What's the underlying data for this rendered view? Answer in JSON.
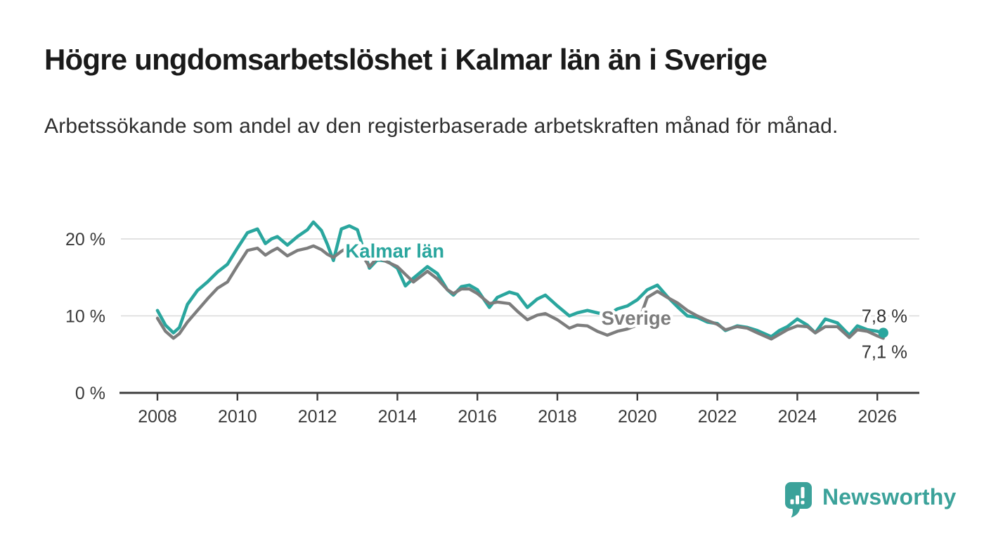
{
  "header": {
    "title": "Högre ungdomsarbetslöshet i Kalmar län än i Sverige",
    "subtitle": "Arbetssökande som andel av den registerbaserade arbetskraften månad för månad."
  },
  "chart_data": {
    "type": "line",
    "title": "",
    "xlabel": "",
    "ylabel": "",
    "x_unit": "decimal year (monthly series, Jan 2008 - Feb 2026)",
    "grid": "horizontal gridlines at 10 % and 20 %",
    "legend": "inline labels on lines",
    "xlim": [
      2007.05,
      2027.05
    ],
    "ylim": [
      0,
      23
    ],
    "yticks": [
      {
        "value": 0,
        "label": "0 %"
      },
      {
        "value": 10,
        "label": "10 %"
      },
      {
        "value": 20,
        "label": "20 %"
      }
    ],
    "xticks": [
      2008,
      2010,
      2012,
      2014,
      2016,
      2018,
      2020,
      2022,
      2024,
      2026
    ],
    "x": [
      2008.0,
      2008.2,
      2008.4,
      2008.55,
      2008.75,
      2009.0,
      2009.25,
      2009.5,
      2009.75,
      2010.0,
      2010.25,
      2010.5,
      2010.7,
      2010.85,
      2011.0,
      2011.25,
      2011.5,
      2011.75,
      2011.9,
      2012.1,
      2012.25,
      2012.4,
      2012.6,
      2012.8,
      2013.0,
      2013.3,
      2013.5,
      2013.75,
      2014.0,
      2014.2,
      2014.4,
      2014.75,
      2015.0,
      2015.25,
      2015.4,
      2015.6,
      2015.8,
      2016.0,
      2016.3,
      2016.5,
      2016.8,
      2017.0,
      2017.25,
      2017.5,
      2017.7,
      2018.0,
      2018.3,
      2018.5,
      2018.75,
      2019.0,
      2019.25,
      2019.5,
      2019.75,
      2020.0,
      2020.25,
      2020.5,
      2020.75,
      2021.0,
      2021.25,
      2021.5,
      2021.75,
      2022.0,
      2022.2,
      2022.5,
      2022.75,
      2023.0,
      2023.35,
      2023.55,
      2023.75,
      2024.0,
      2024.25,
      2024.45,
      2024.7,
      2025.0,
      2025.3,
      2025.5,
      2025.75,
      2026.0,
      2026.15
    ],
    "series": [
      {
        "name": "Kalmar län",
        "color": "#2aa69e",
        "end_label": "7,8 %",
        "end_value": 7.8,
        "end_dot": true,
        "values": [
          10.7,
          8.8,
          7.8,
          8.5,
          11.5,
          13.3,
          14.4,
          15.7,
          16.7,
          18.8,
          20.8,
          21.3,
          19.4,
          20.0,
          20.3,
          19.2,
          20.3,
          21.2,
          22.2,
          21.1,
          19.3,
          17.2,
          21.3,
          21.7,
          21.2,
          16.2,
          17.3,
          17.1,
          16.2,
          13.9,
          14.9,
          16.4,
          15.5,
          13.4,
          12.7,
          13.8,
          14.0,
          13.4,
          11.1,
          12.4,
          13.1,
          12.8,
          11.1,
          12.2,
          12.7,
          11.3,
          10.0,
          10.4,
          10.7,
          10.4,
          10.1,
          10.9,
          11.3,
          12.1,
          13.4,
          14.0,
          12.5,
          11.2,
          10.0,
          9.8,
          9.2,
          9.0,
          8.1,
          8.7,
          8.5,
          8.1,
          7.3,
          8.1,
          8.6,
          9.6,
          8.8,
          7.8,
          9.6,
          9.1,
          7.5,
          8.7,
          8.2,
          8.0,
          7.8
        ]
      },
      {
        "name": "Sverige",
        "color": "#7d7d7d",
        "end_label": "7,1 %",
        "end_value": 7.1,
        "end_dot": false,
        "values": [
          9.7,
          8.0,
          7.1,
          7.7,
          9.2,
          10.7,
          12.2,
          13.6,
          14.4,
          16.5,
          18.5,
          18.8,
          17.9,
          18.4,
          18.8,
          17.8,
          18.5,
          18.8,
          19.1,
          18.6,
          18.0,
          17.6,
          18.4,
          19.0,
          18.9,
          16.4,
          17.6,
          17.0,
          16.4,
          15.4,
          14.4,
          15.8,
          14.8,
          13.4,
          12.9,
          13.5,
          13.5,
          12.9,
          11.6,
          11.8,
          11.6,
          10.6,
          9.5,
          10.1,
          10.3,
          9.5,
          8.4,
          8.8,
          8.7,
          8.0,
          7.5,
          8.0,
          8.3,
          8.8,
          12.4,
          13.2,
          12.4,
          11.7,
          10.7,
          10.0,
          9.4,
          8.9,
          8.2,
          8.6,
          8.4,
          7.8,
          7.0,
          7.6,
          8.2,
          8.7,
          8.6,
          7.8,
          8.6,
          8.6,
          7.2,
          8.2,
          8.0,
          7.4,
          7.1
        ]
      }
    ],
    "series_label_anchors": [
      {
        "series": "Kalmar län",
        "x": 2012.7,
        "y": 17.6
      },
      {
        "series": "Sverige",
        "x": 2019.1,
        "y": 8.85
      }
    ]
  },
  "footer": {
    "logo_text": "Newsworthy",
    "logo_icon": "bar-chart-speech-bubble-icon",
    "logo_color": "#3ba29a"
  },
  "style_colors": {
    "accent_teal": "#2aa69e",
    "line_gray": "#7d7d7d",
    "gridline": "#d9d9d9",
    "axis": "#3d3d3d",
    "tick_text": "#3a3a3a",
    "value_label_text": "#333333"
  }
}
